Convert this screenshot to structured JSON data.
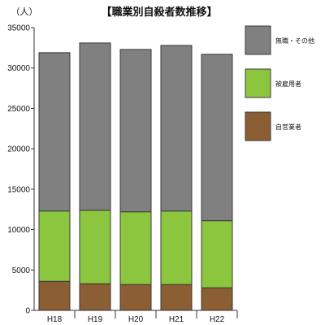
{
  "chart_data": {
    "type": "bar",
    "stacked": true,
    "title": "【職業別自殺者数推移】",
    "ylabel": "（人）",
    "xlabel": "",
    "categories": [
      "H18",
      "H19",
      "H20",
      "H21",
      "H22"
    ],
    "series": [
      {
        "name": "自営業者",
        "color": "#8c5e33",
        "values": [
          3600,
          3300,
          3200,
          3200,
          2800
        ]
      },
      {
        "name": "被雇用者",
        "color": "#8cc63f",
        "values": [
          8700,
          9100,
          9000,
          9100,
          8300
        ]
      },
      {
        "name": "無職・その他",
        "color": "#808080",
        "values": [
          19600,
          20700,
          20100,
          20500,
          20600
        ]
      }
    ],
    "ylim": [
      0,
      35000
    ],
    "yticks": [
      0,
      5000,
      10000,
      15000,
      20000,
      25000,
      30000,
      35000
    ],
    "grid": false,
    "legend": "right"
  }
}
